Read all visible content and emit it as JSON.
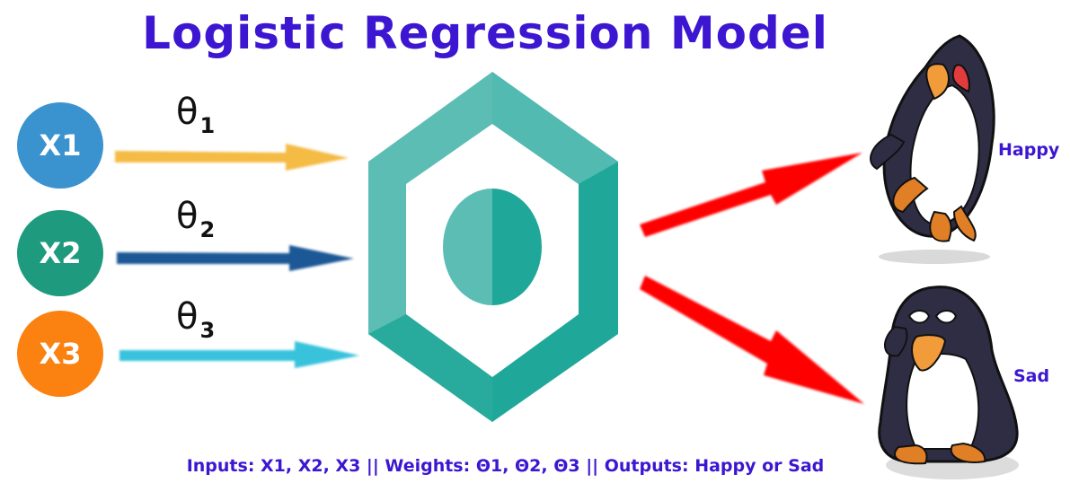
{
  "title": "Logistic Regression Model",
  "inputs": [
    {
      "label": "X1",
      "color": "#3a93cf"
    },
    {
      "label": "X2",
      "color": "#1e9a7e"
    },
    {
      "label": "X3",
      "color": "#fb8110"
    }
  ],
  "weights": [
    {
      "symbol": "θ",
      "subscript": "1",
      "arrow_color": "#f4bb45"
    },
    {
      "symbol": "θ",
      "subscript": "2",
      "arrow_color": "#1c5895"
    },
    {
      "symbol": "θ",
      "subscript": "3",
      "arrow_color": "#39c2dc"
    }
  ],
  "model": {
    "icon": "hexagon-neuron-icon",
    "color_light": "#5cbdb4",
    "color_dark": "#1fa899"
  },
  "outputs": [
    {
      "label": "Happy",
      "icon": "happy-penguin-icon"
    },
    {
      "label": "Sad",
      "icon": "sad-penguin-icon"
    }
  ],
  "output_arrow_color": "#ff0000",
  "caption": "Inputs: X1, X2, X3 || Weights: Θ1, Θ2, Θ3 || Outputs: Happy or Sad",
  "colors": {
    "title": "#3c16d1",
    "label": "#3c16d1"
  }
}
